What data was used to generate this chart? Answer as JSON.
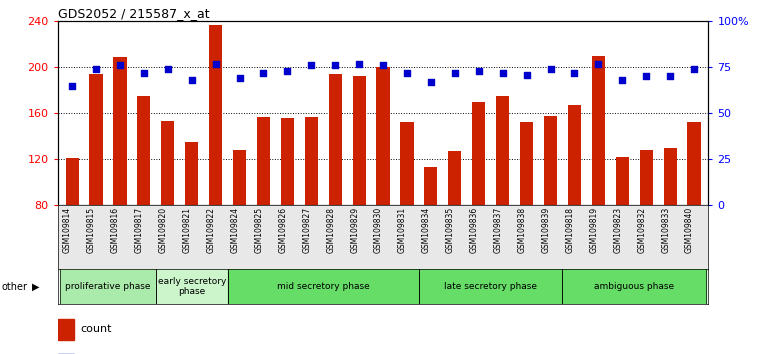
{
  "title": "GDS2052 / 215587_x_at",
  "samples": [
    "GSM109814",
    "GSM109815",
    "GSM109816",
    "GSM109817",
    "GSM109820",
    "GSM109821",
    "GSM109822",
    "GSM109824",
    "GSM109825",
    "GSM109826",
    "GSM109827",
    "GSM109828",
    "GSM109829",
    "GSM109830",
    "GSM109831",
    "GSM109834",
    "GSM109835",
    "GSM109836",
    "GSM109837",
    "GSM109838",
    "GSM109839",
    "GSM109818",
    "GSM109819",
    "GSM109823",
    "GSM109832",
    "GSM109833",
    "GSM109840"
  ],
  "count_values": [
    121,
    194,
    209,
    175,
    153,
    135,
    237,
    128,
    157,
    156,
    157,
    194,
    192,
    200,
    152,
    113,
    127,
    170,
    175,
    152,
    158,
    167,
    210,
    122,
    128,
    130,
    152
  ],
  "percentile_values": [
    65,
    74,
    76,
    72,
    74,
    68,
    77,
    69,
    72,
    73,
    76,
    76,
    77,
    76,
    72,
    67,
    72,
    73,
    72,
    71,
    74,
    72,
    77,
    68,
    70,
    70,
    74
  ],
  "phase_data": [
    {
      "name": "proliferative phase",
      "start": 0,
      "end": 4,
      "color": "#aaeaaa"
    },
    {
      "name": "early secretory\nphase",
      "start": 4,
      "end": 7,
      "color": "#ccf5cc"
    },
    {
      "name": "mid secretory phase",
      "start": 7,
      "end": 15,
      "color": "#66dd66"
    },
    {
      "name": "late secretory phase",
      "start": 15,
      "end": 21,
      "color": "#66dd66"
    },
    {
      "name": "ambiguous phase",
      "start": 21,
      "end": 27,
      "color": "#66dd66"
    }
  ],
  "bar_color": "#CC2200",
  "dot_color": "#0000CC",
  "ylim_left": [
    80,
    240
  ],
  "yticks_left": [
    80,
    120,
    160,
    200,
    240
  ],
  "yticks_right": [
    0,
    25,
    50,
    75,
    100
  ],
  "ytick_labels_right": [
    "0",
    "25",
    "50",
    "75",
    "100%"
  ]
}
